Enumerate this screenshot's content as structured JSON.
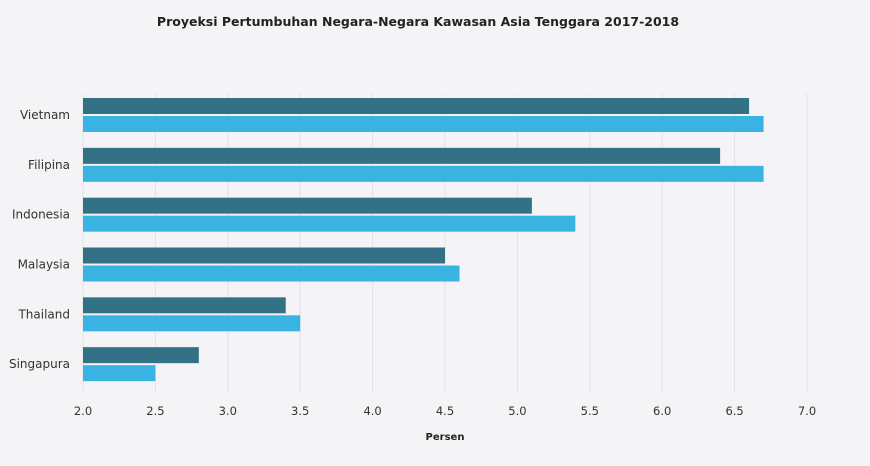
{
  "chart_data": {
    "type": "bar",
    "orientation": "horizontal",
    "title": "Proyeksi Pertumbuhan Negara-Negara Kawasan Asia Tenggara 2017-2018",
    "xlabel": "Persen",
    "ylabel": "",
    "categories": [
      "Vietnam",
      "Filipina",
      "Indonesia",
      "Malaysia",
      "Thailand",
      "Singapura"
    ],
    "series": [
      {
        "values": [
          6.6,
          6.4,
          5.1,
          4.5,
          3.4,
          2.8
        ],
        "color": "#337186"
      },
      {
        "values": [
          6.7,
          6.7,
          5.4,
          4.6,
          3.5,
          2.5
        ],
        "color": "#38b3e2"
      }
    ],
    "xlim": [
      2.0,
      7.0
    ],
    "xticks": [
      "2.0",
      "2.5",
      "3.0",
      "3.5",
      "4.0",
      "4.5",
      "5.0",
      "5.5",
      "6.0",
      "6.5",
      "7.0"
    ],
    "grid": true,
    "legend": "none"
  }
}
